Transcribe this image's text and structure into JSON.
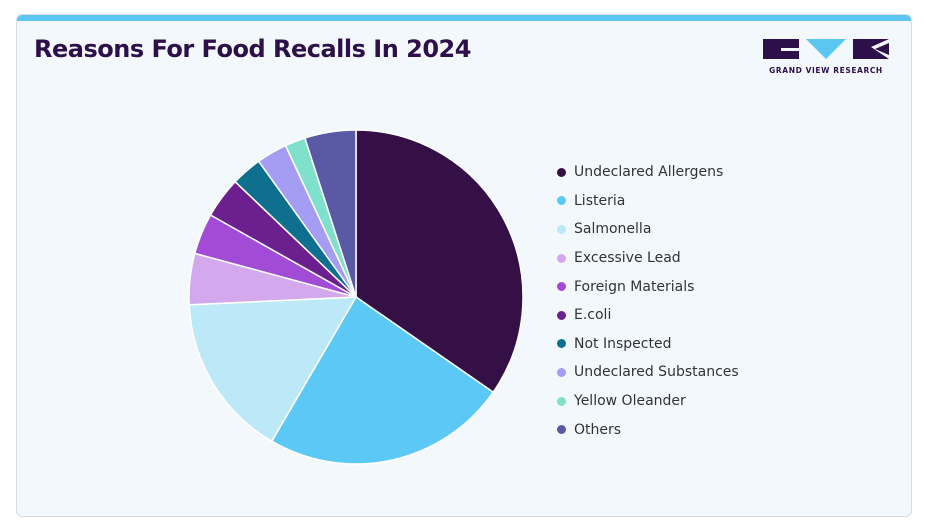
{
  "title": "Reasons For Food Recalls In 2024",
  "logo": {
    "text": "GRAND VIEW RESEARCH",
    "color": "#2d0f4a",
    "accent": "#5bc7f0"
  },
  "chart_data": {
    "type": "pie",
    "title": "Reasons For Food Recalls In 2024",
    "legend_position": "right",
    "slices": [
      {
        "label": "Undeclared Allergens",
        "value": 35,
        "color": "#341047"
      },
      {
        "label": "Listeria",
        "value": 24,
        "color": "#5bc8f5"
      },
      {
        "label": "Salmonella",
        "value": 16,
        "color": "#bde8f7"
      },
      {
        "label": "Excessive Lead",
        "value": 5,
        "color": "#d4a8ec"
      },
      {
        "label": "Foreign Materials",
        "value": 4,
        "color": "#a24bd6"
      },
      {
        "label": "E.coli",
        "value": 4,
        "color": "#6c1f8e"
      },
      {
        "label": "Not Inspected",
        "value": 3,
        "color": "#0e6f8f"
      },
      {
        "label": "Undeclared Substances",
        "value": 3,
        "color": "#a59cf4"
      },
      {
        "label": "Yellow Oleander",
        "value": 2,
        "color": "#7fe0cc"
      },
      {
        "label": "Others",
        "value": 5,
        "color": "#5a59a6"
      }
    ]
  }
}
